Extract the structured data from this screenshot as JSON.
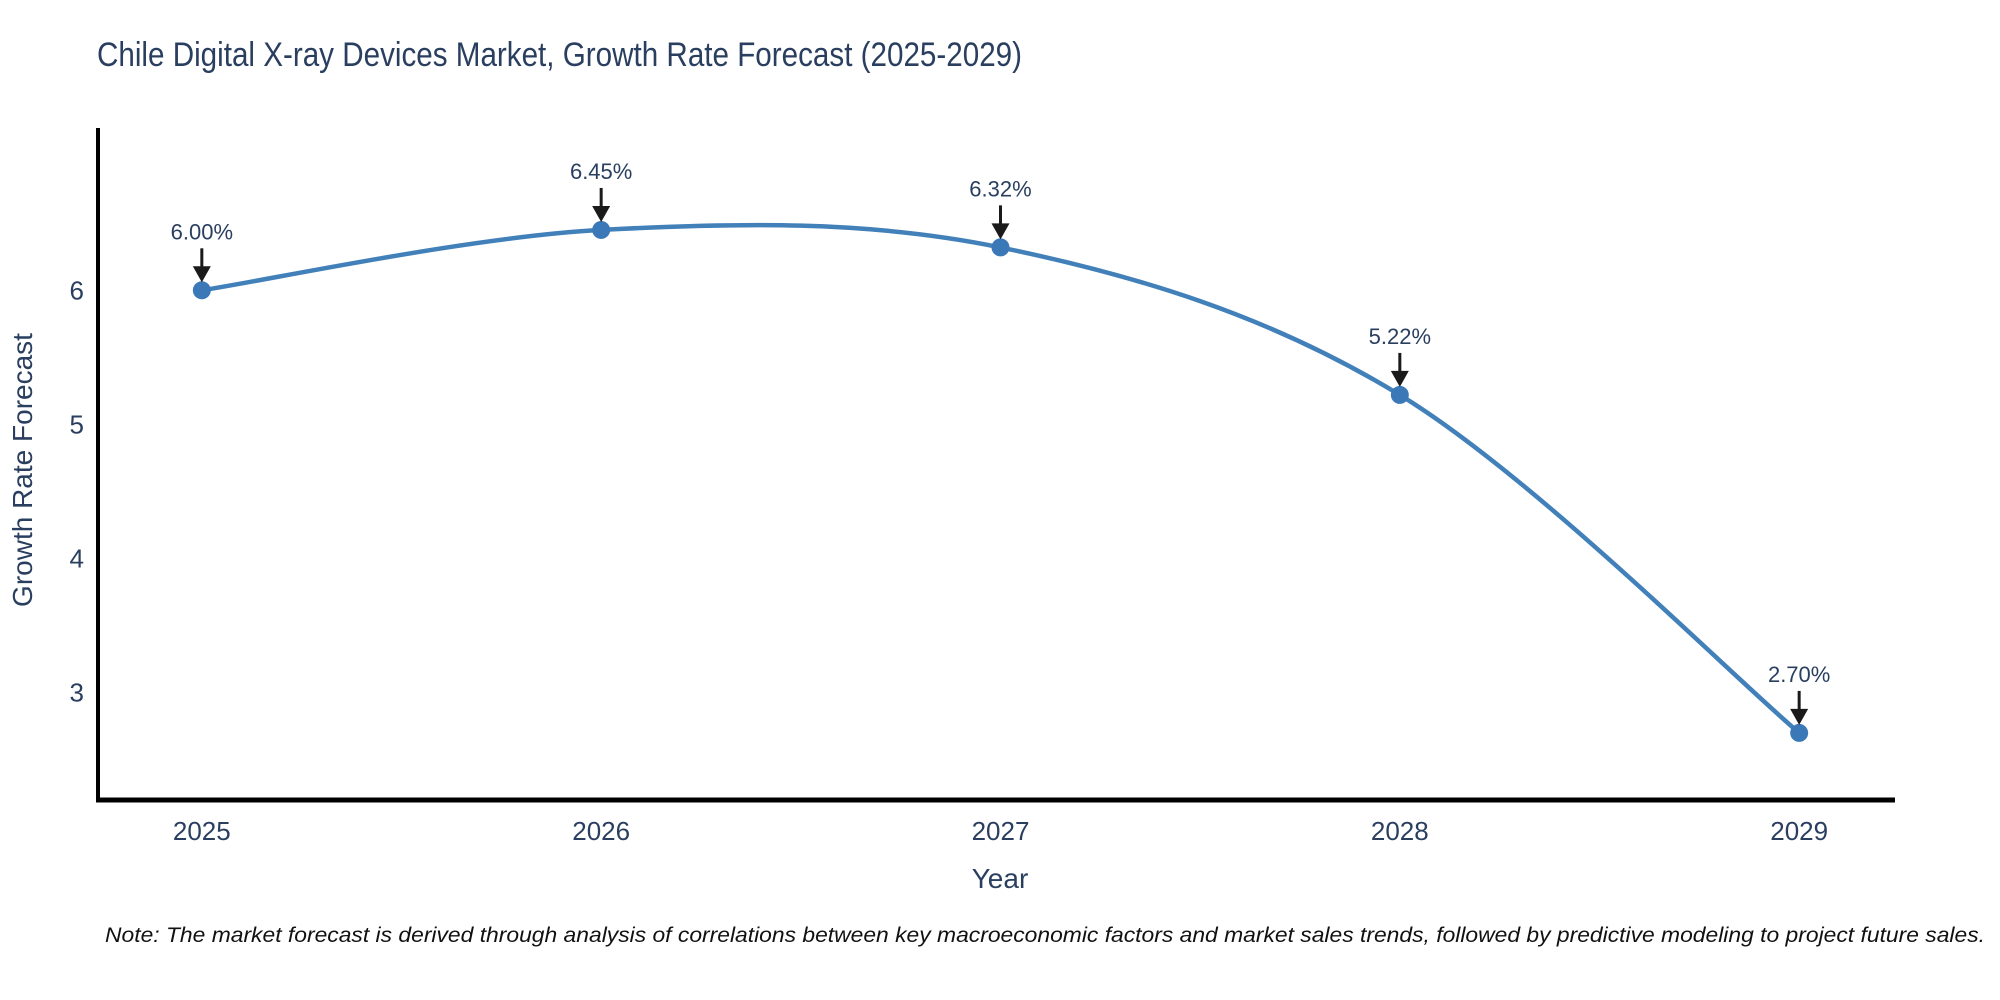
{
  "title": "Chile Digital X-ray Devices Market, Growth Rate Forecast (2025-2029)",
  "note": "Note: The market forecast is derived through analysis of correlations between key macroeconomic factors and market sales trends, followed by predictive modeling to project future sales.",
  "colors": {
    "line": "#4280ba",
    "marker": "#3a78b8",
    "axis": "#000000",
    "arrow": "#1a1a1a",
    "title_text": "#2a3f5f",
    "tick_text": "#2a3f5f",
    "annotation_text": "#2a3f5f",
    "background": "#ffffff"
  },
  "chart_data": {
    "type": "line",
    "title": "Chile Digital X-ray Devices Market, Growth Rate Forecast (2025-2029)",
    "xlabel": "Year",
    "ylabel": "Growth Rate Forecast",
    "x": [
      2025,
      2026,
      2027,
      2028,
      2029
    ],
    "values": [
      6.0,
      6.45,
      6.32,
      5.22,
      2.7
    ],
    "point_labels": [
      "6.00%",
      "6.45%",
      "6.32%",
      "5.22%",
      "2.70%"
    ],
    "x_ticks": [
      "2025",
      "2026",
      "2027",
      "2028",
      "2029"
    ],
    "y_ticks": [
      3,
      4,
      5,
      6
    ],
    "x_range": [
      2024.74,
      2029.24
    ],
    "y_range": [
      2.2,
      7.21
    ],
    "line_shape": "spline",
    "grid": false,
    "legend_position": "none",
    "annotation_note": "Note: The market forecast is derived through analysis of correlations between key macroeconomic factors and market sales trends, followed by predictive modeling to project future sales."
  }
}
